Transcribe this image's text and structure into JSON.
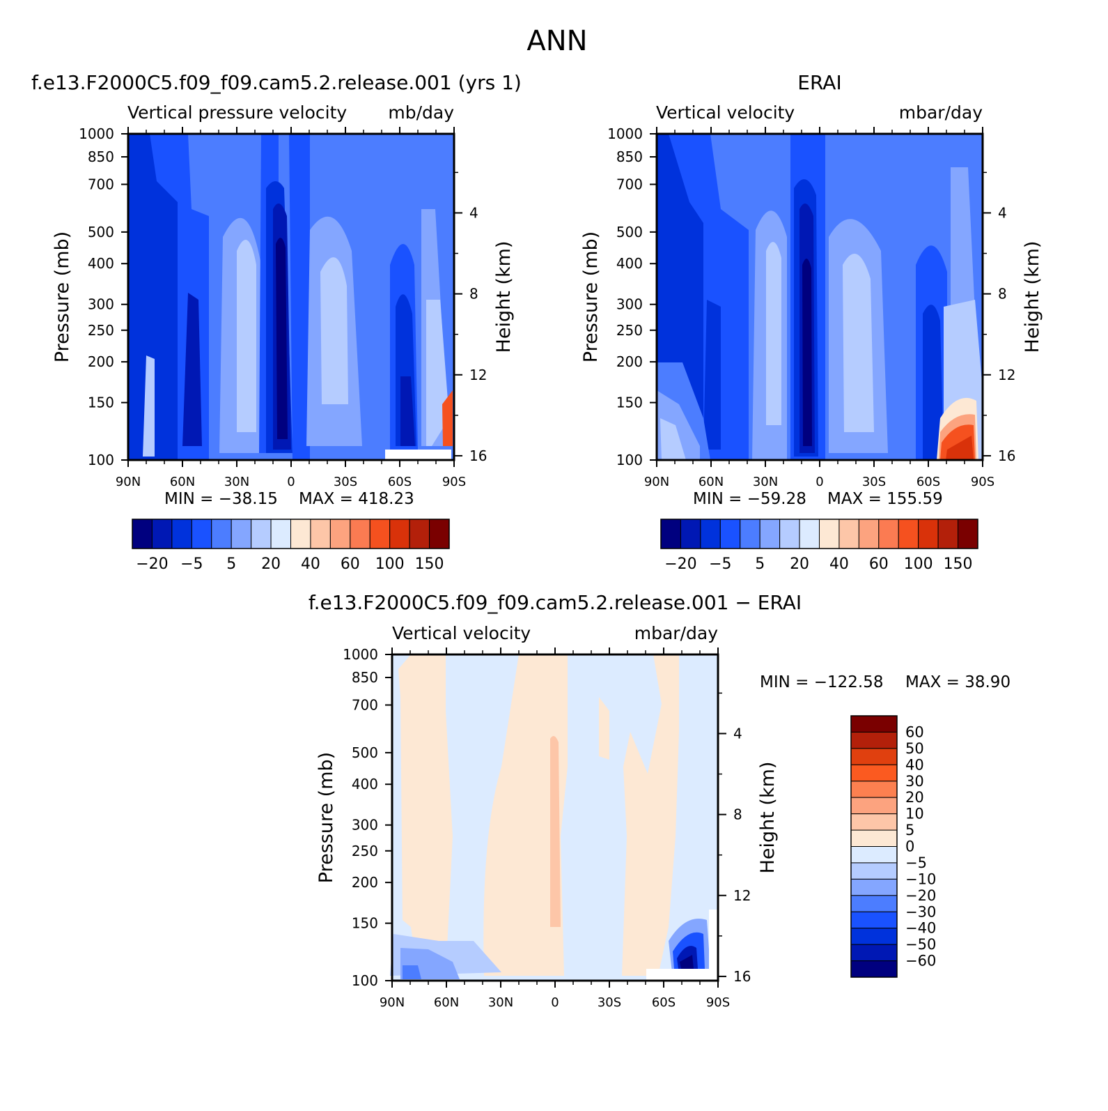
{
  "figure": {
    "title": "ANN"
  },
  "chart_data": [
    {
      "type": "heatmap",
      "id": "model",
      "title": "f.e13.F2000C5.f09_f09.cam5.2.release.001 (yrs 1)",
      "left_label": "Vertical pressure velocity",
      "right_label": "mb/day",
      "ylabel": "Pressure (mb)",
      "ylabel_right": "Height (km)",
      "x_ticks": [
        "90N",
        "60N",
        "30N",
        "0",
        "30S",
        "60S",
        "90S"
      ],
      "y_ticks": [
        "100",
        "150",
        "200",
        "250",
        "300",
        "400",
        "500",
        "700",
        "850",
        "1000"
      ],
      "y2_ticks": [
        "16",
        "12",
        "8",
        "4"
      ],
      "min_label": "MIN = −38.15",
      "max_label": "MAX = 418.23",
      "min": -38.15,
      "max": 418.23,
      "colorbar": {
        "orientation": "horizontal",
        "labels": [
          "−20",
          "−5",
          "5",
          "20",
          "40",
          "60",
          "100",
          "150"
        ],
        "colors": [
          "#00007f",
          "#0018b4",
          "#0032dc",
          "#1a52ff",
          "#4c7dff",
          "#84a6ff",
          "#b5ccff",
          "#dcebff",
          "#fde8d4",
          "#fdc6a8",
          "#fca37f",
          "#fb7b52",
          "#f5511f",
          "#d9320a",
          "#b3200a",
          "#7a0000"
        ]
      }
    },
    {
      "type": "heatmap",
      "id": "obs",
      "title": "ERAI",
      "left_label": "Vertical velocity",
      "right_label": "mbar/day",
      "ylabel": "Pressure (mb)",
      "ylabel_right": "Height (km)",
      "x_ticks": [
        "90N",
        "60N",
        "30N",
        "0",
        "30S",
        "60S",
        "90S"
      ],
      "y_ticks": [
        "100",
        "150",
        "200",
        "250",
        "300",
        "400",
        "500",
        "700",
        "850",
        "1000"
      ],
      "y2_ticks": [
        "16",
        "12",
        "8",
        "4"
      ],
      "min_label": "MIN = −59.28",
      "max_label": "MAX = 155.59",
      "min": -59.28,
      "max": 155.59,
      "colorbar": {
        "orientation": "horizontal",
        "labels": [
          "−20",
          "−5",
          "5",
          "20",
          "40",
          "60",
          "100",
          "150"
        ],
        "colors": [
          "#00007f",
          "#0018b4",
          "#0032dc",
          "#1a52ff",
          "#4c7dff",
          "#84a6ff",
          "#b5ccff",
          "#dcebff",
          "#fde8d4",
          "#fdc6a8",
          "#fca37f",
          "#fb7b52",
          "#f5511f",
          "#d9320a",
          "#b3200a",
          "#7a0000"
        ]
      }
    },
    {
      "type": "heatmap",
      "id": "diff",
      "title": "f.e13.F2000C5.f09_f09.cam5.2.release.001 − ERAI",
      "left_label": "Vertical velocity",
      "right_label": "mbar/day",
      "ylabel": "Pressure (mb)",
      "ylabel_right": "Height (km)",
      "x_ticks": [
        "90N",
        "60N",
        "30N",
        "0",
        "30S",
        "60S",
        "90S"
      ],
      "y_ticks": [
        "100",
        "150",
        "200",
        "250",
        "300",
        "400",
        "500",
        "700",
        "850",
        "1000"
      ],
      "y2_ticks": [
        "16",
        "12",
        "8",
        "4"
      ],
      "min_label": "MIN = −122.58",
      "max_label": "MAX =   38.90",
      "min": -122.58,
      "max": 38.9,
      "colorbar": {
        "orientation": "vertical",
        "labels": [
          "60",
          "50",
          "40",
          "30",
          "20",
          "10",
          "5",
          "0",
          "−5",
          "−10",
          "−20",
          "−30",
          "−40",
          "−50",
          "−60"
        ],
        "colors": [
          "#7a0000",
          "#b3200a",
          "#e0400f",
          "#fb5a20",
          "#fc8050",
          "#fca37f",
          "#fdc6a8",
          "#fde8d4",
          "#dcebff",
          "#b5ccff",
          "#84a6ff",
          "#4c7dff",
          "#1a52ff",
          "#0032dc",
          "#0018b4",
          "#00007f"
        ]
      }
    }
  ]
}
